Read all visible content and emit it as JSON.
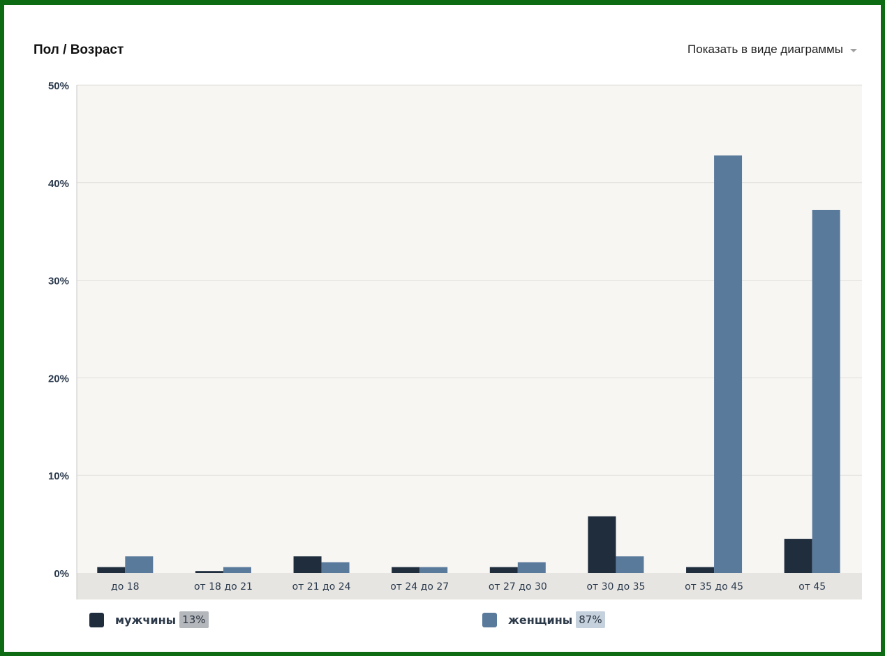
{
  "header": {
    "title": "Пол / Возраст",
    "view_toggle": "Показать в виде диаграммы"
  },
  "legend": [
    {
      "label": "мужчины",
      "percent": "13%",
      "color": "#1f2d3d",
      "badge_color": "#b4b8bc"
    },
    {
      "label": "женщины",
      "percent": "87%",
      "color": "#5a7a9c",
      "badge_color": "#c5d1dd"
    }
  ],
  "colors": {
    "plot_bg": "#f7f6f3",
    "axis_band": "#e6e5e2",
    "grid": "#e0dfdb",
    "frame_border": "#0d6b14"
  },
  "chart_data": {
    "type": "bar",
    "categories": [
      "до 18",
      "от 18 до 21",
      "от 21 до 24",
      "от 24 до 27",
      "от 27 до 30",
      "от 30 до 35",
      "от 35 до 45",
      "от 45"
    ],
    "series": [
      {
        "name": "мужчины",
        "values": [
          0.6,
          0.2,
          1.7,
          0.6,
          0.6,
          5.8,
          0.6,
          3.5
        ]
      },
      {
        "name": "женщины",
        "values": [
          1.7,
          0.6,
          1.1,
          0.6,
          1.1,
          1.7,
          42.8,
          37.2
        ]
      }
    ],
    "y_ticks": [
      "0%",
      "10%",
      "20%",
      "30%",
      "40%",
      "50%"
    ],
    "ylim": [
      0,
      50
    ],
    "grid": true,
    "legend_position": "bottom"
  }
}
